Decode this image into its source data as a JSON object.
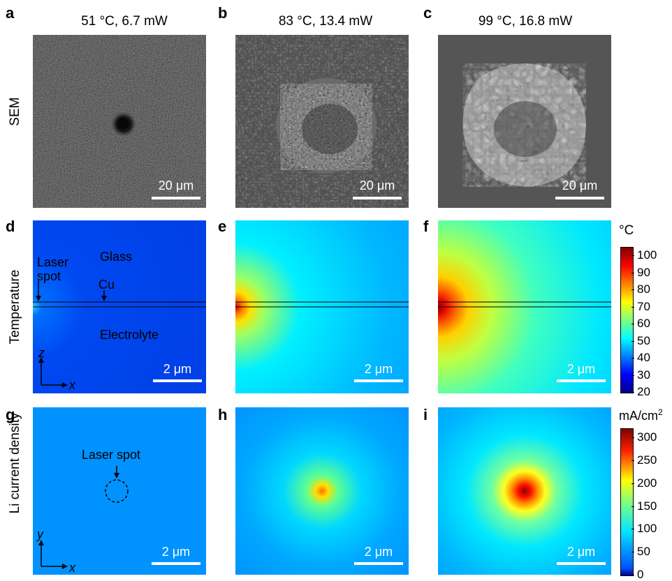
{
  "panel_letters": [
    "a",
    "b",
    "c",
    "d",
    "e",
    "f",
    "g",
    "h",
    "i"
  ],
  "column_titles": [
    "51 °C, 6.7 mW",
    "83 °C, 13.4 mW",
    "99 °C, 16.8 mW"
  ],
  "row_labels": [
    "SEM",
    "Temperature",
    "Li current density"
  ],
  "sem_scale_label": "20 μm",
  "sim_scale_label": "2 μm",
  "temperature_panel": {
    "glass": "Glass",
    "laser_spot_line1": "Laser",
    "laser_spot_line2": "spot",
    "cu": "Cu",
    "electrolyte": "Electrolyte",
    "axis_z": "z",
    "axis_x": "x"
  },
  "current_panel": {
    "laser_spot": "Laser spot",
    "axis_y": "y",
    "axis_x": "x"
  },
  "temperature_colorbar": {
    "unit": "°C",
    "ticks": [
      "100",
      "90",
      "80",
      "70",
      "60",
      "50",
      "40",
      "30",
      "20"
    ],
    "range": [
      20,
      105
    ]
  },
  "current_colorbar": {
    "unit": "mA/cm",
    "unit_sup": "2",
    "ticks": [
      "300",
      "250",
      "200",
      "150",
      "100",
      "50",
      "0"
    ],
    "range": [
      0,
      320
    ]
  },
  "colors": {
    "jet_dark_blue": "#00008f",
    "jet_blue": "#0050ff",
    "jet_cyan": "#00e0ff",
    "jet_yellow": "#ffe000",
    "jet_red": "#ff1000",
    "jet_dark_red": "#800000"
  }
}
